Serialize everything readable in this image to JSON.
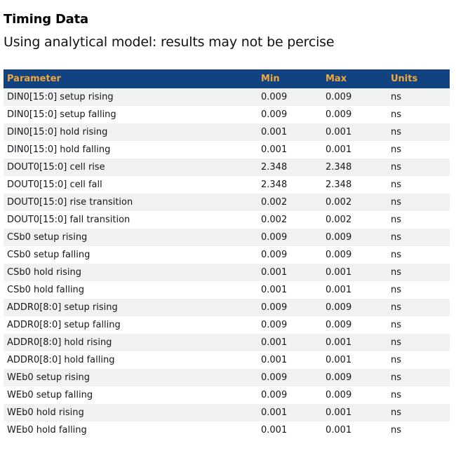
{
  "page": {
    "title": "Timing Data",
    "subtitle": "Using analytical model: results may not be percise"
  },
  "colors": {
    "header_bg": "#114380",
    "header_text": "#F0A63F",
    "row_alt_bg": "#F0F2F1",
    "row_text": "#14171C"
  },
  "table": {
    "columns": [
      "Parameter",
      "Min",
      "Max",
      "Units"
    ],
    "rows": [
      {
        "parameter": "DIN0[15:0] setup rising",
        "min": "0.009",
        "max": "0.009",
        "units": "ns"
      },
      {
        "parameter": "DIN0[15:0] setup falling",
        "min": "0.009",
        "max": "0.009",
        "units": "ns"
      },
      {
        "parameter": "DIN0[15:0] hold rising",
        "min": "0.001",
        "max": "0.001",
        "units": "ns"
      },
      {
        "parameter": "DIN0[15:0] hold falling",
        "min": "0.001",
        "max": "0.001",
        "units": "ns"
      },
      {
        "parameter": "DOUT0[15:0] cell rise",
        "min": "2.348",
        "max": "2.348",
        "units": "ns"
      },
      {
        "parameter": "DOUT0[15:0] cell fall",
        "min": "2.348",
        "max": "2.348",
        "units": "ns"
      },
      {
        "parameter": "DOUT0[15:0] rise transition",
        "min": "0.002",
        "max": "0.002",
        "units": "ns"
      },
      {
        "parameter": "DOUT0[15:0] fall transition",
        "min": "0.002",
        "max": "0.002",
        "units": "ns"
      },
      {
        "parameter": "CSb0 setup rising",
        "min": "0.009",
        "max": "0.009",
        "units": "ns"
      },
      {
        "parameter": "CSb0 setup falling",
        "min": "0.009",
        "max": "0.009",
        "units": "ns"
      },
      {
        "parameter": "CSb0 hold rising",
        "min": "0.001",
        "max": "0.001",
        "units": "ns"
      },
      {
        "parameter": "CSb0 hold falling",
        "min": "0.001",
        "max": "0.001",
        "units": "ns"
      },
      {
        "parameter": "ADDR0[8:0] setup rising",
        "min": "0.009",
        "max": "0.009",
        "units": "ns"
      },
      {
        "parameter": "ADDR0[8:0] setup falling",
        "min": "0.009",
        "max": "0.009",
        "units": "ns"
      },
      {
        "parameter": "ADDR0[8:0] hold rising",
        "min": "0.001",
        "max": "0.001",
        "units": "ns"
      },
      {
        "parameter": "ADDR0[8:0] hold falling",
        "min": "0.001",
        "max": "0.001",
        "units": "ns"
      },
      {
        "parameter": "WEb0 setup rising",
        "min": "0.009",
        "max": "0.009",
        "units": "ns"
      },
      {
        "parameter": "WEb0 setup falling",
        "min": "0.009",
        "max": "0.009",
        "units": "ns"
      },
      {
        "parameter": "WEb0 hold rising",
        "min": "0.001",
        "max": "0.001",
        "units": "ns"
      },
      {
        "parameter": "WEb0 hold falling",
        "min": "0.001",
        "max": "0.001",
        "units": "ns"
      }
    ]
  }
}
